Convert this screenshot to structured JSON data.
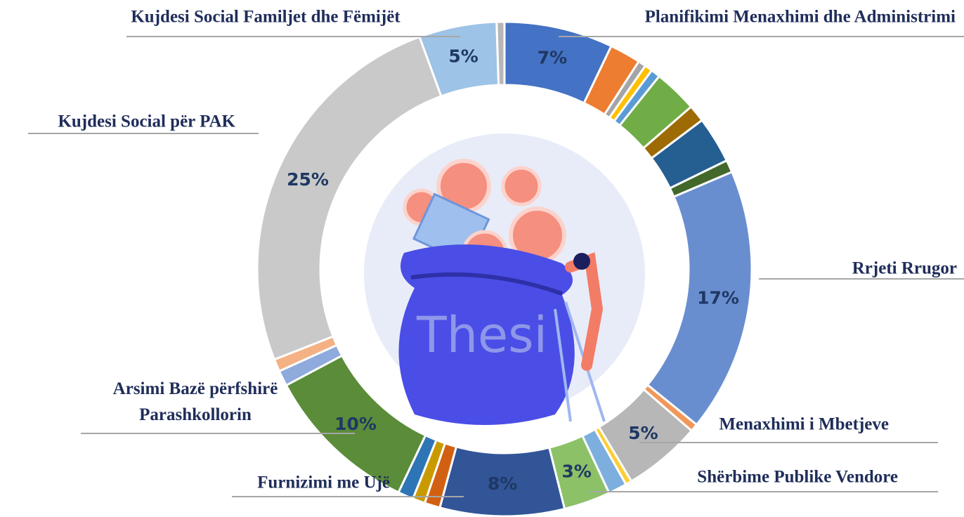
{
  "chart_data": {
    "type": "pie",
    "center_text": "Thesi",
    "categories": [
      "Planifikimi Menaxhimi dhe Administrimi",
      null,
      null,
      null,
      null,
      null,
      null,
      null,
      null,
      "Rrjeti Rrugor",
      null,
      "Menaxhimi i Mbetjeve",
      null,
      null,
      "Shërbime Publike Vendore",
      "Furnizimi me Ujë",
      null,
      null,
      null,
      "Arsimi Bazë përfshirë\nParashkollorin",
      null,
      null,
      "Kujdesi Social për PAK",
      "Kujdesi Social Familjet dhe Fëmijët",
      null
    ],
    "values": [
      7,
      2,
      0.5,
      0.5,
      0.6,
      2.8,
      1.1,
      3,
      0.8,
      17,
      0.5,
      5,
      0.4,
      1.2,
      3,
      8,
      1,
      0.8,
      1,
      10,
      1,
      0.8,
      25,
      5,
      0.5
    ],
    "value_labels": [
      "7%",
      null,
      null,
      null,
      null,
      null,
      null,
      null,
      null,
      "17%",
      null,
      "5%",
      null,
      null,
      "3%",
      "8%",
      null,
      null,
      null,
      "10%",
      null,
      null,
      "25%",
      "5%",
      null
    ],
    "colors": [
      "#4472c4",
      "#ed7d31",
      "#a5a5a5",
      "#ffc000",
      "#5b9bd5",
      "#70ad47",
      "#9e6a03",
      "#255e91",
      "#43682b",
      "#698ed0",
      "#f1975a",
      "#b7b7b7",
      "#ffcd33",
      "#7cafdd",
      "#8cc168",
      "#325597",
      "#d26012",
      "#c99a00",
      "#2e75b6",
      "#5b8c39",
      "#8faadc",
      "#f4b183",
      "#c9c9c9",
      "#9dc3e6",
      "#b7b7b7"
    ]
  }
}
